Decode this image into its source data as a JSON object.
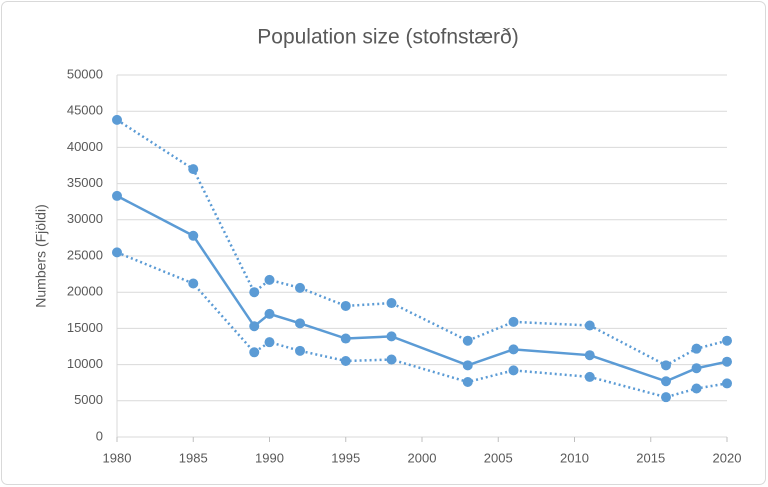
{
  "chart_data": {
    "type": "line",
    "title": "Population size (stofnstærð)",
    "y_label": "Numbers (Fjöldi)",
    "x": [
      1980,
      1985,
      1989,
      1990,
      1992,
      1995,
      1998,
      2003,
      2006,
      2011,
      2016,
      2018,
      2020
    ],
    "series": [
      {
        "color": "#5b9bd5",
        "line_style": "dotted",
        "values": [
          43800,
          37000,
          20000,
          21700,
          20600,
          18100,
          18500,
          13300,
          15900,
          15400,
          9900,
          12200,
          13300
        ]
      },
      {
        "color": "#5b9bd5",
        "line_style": "solid",
        "values": [
          33300,
          27800,
          15300,
          17000,
          15700,
          13600,
          13900,
          9900,
          12100,
          11300,
          7700,
          9500,
          10400
        ]
      },
      {
        "color": "#5b9bd5",
        "line_style": "dotted",
        "values": [
          25500,
          21200,
          11700,
          13100,
          11900,
          10500,
          10700,
          7600,
          9200,
          8300,
          5500,
          6700,
          7400
        ]
      }
    ],
    "xlim": [
      1980,
      2020
    ],
    "xticks": [
      1980,
      1985,
      1990,
      1995,
      2000,
      2005,
      2010,
      2015,
      2020
    ],
    "ylim": [
      0,
      50000
    ],
    "yticks": [
      0,
      5000,
      10000,
      15000,
      20000,
      25000,
      30000,
      35000,
      40000,
      45000,
      50000
    ],
    "grid": true
  }
}
